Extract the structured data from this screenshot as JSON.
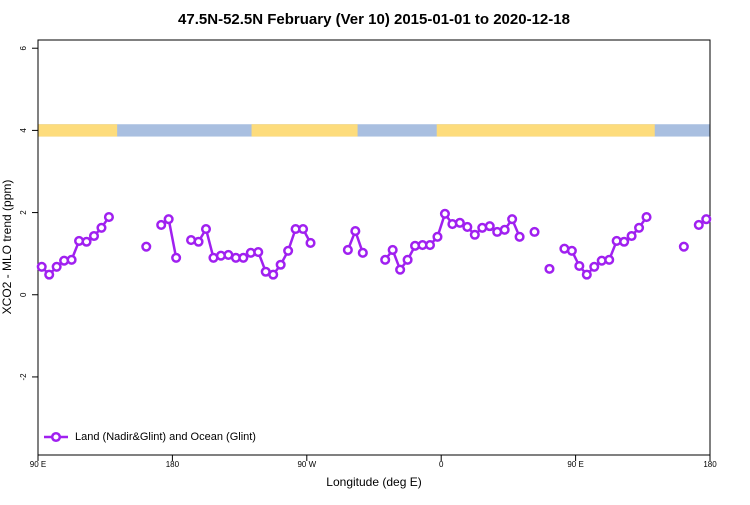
{
  "chart_data": {
    "type": "line",
    "title": "47.5N-52.5N February (Ver 10)   2015-01-01 to 2020-12-18",
    "xlabel": "Longitude (deg E)",
    "ylabel": "XCO2 - MLO trend (ppm)",
    "xlim": [
      90,
      540
    ],
    "ylim": [
      -3.9,
      6.2
    ],
    "xticks": [
      {
        "value": 90,
        "label": "90 E"
      },
      180,
      {
        "value": 270,
        "label": "90 W"
      },
      {
        "value": 360,
        "label": "0"
      },
      {
        "value": 450,
        "label": "90 E"
      },
      {
        "value": 540,
        "label": "180"
      }
    ],
    "yticks": [
      -2,
      0,
      2,
      4,
      6
    ],
    "legend": "lower left",
    "surface_band": {
      "ylim": [
        3.85,
        4.15
      ],
      "ocean_color": "#a9bfe0",
      "land_color": "#fddc7c",
      "land": [
        [
          90,
          143
        ],
        [
          233,
          304
        ],
        [
          357,
          503
        ]
      ]
    },
    "x": [
      92.5,
      97.5,
      102.5,
      107.5,
      112.5,
      117.5,
      122.5,
      127.5,
      132.5,
      137.5,
      142.5,
      147.5,
      152.5,
      157.5,
      162.5,
      167.5,
      172.5,
      177.5,
      182.5,
      187.5,
      192.5,
      197.5,
      202.5,
      207.5,
      212.5,
      217.5,
      222.5,
      227.5,
      232.5,
      237.5,
      242.5,
      247.5,
      252.5,
      257.5,
      262.5,
      267.5,
      272.5,
      277.5,
      282.5,
      287.5,
      292.5,
      297.5,
      302.5,
      307.5,
      312.5,
      317.5,
      322.5,
      327.5,
      332.5,
      337.5,
      342.5,
      347.5,
      352.5,
      357.5,
      362.5,
      367.5,
      372.5,
      377.5,
      382.5,
      387.5,
      392.5,
      397.5,
      402.5,
      407.5,
      412.5,
      417.5,
      422.5,
      427.5,
      432.5,
      437.5,
      442.5,
      447.5,
      452.5,
      457.5,
      462.5,
      467.5,
      472.5,
      477.5,
      482.5,
      487.5,
      492.5,
      497.5,
      502.5,
      507.5,
      512.5,
      517.5,
      522.5,
      527.5,
      532.5,
      537.5
    ],
    "series": [
      {
        "name": "Land (Nadir&Glint) and Ocean (Glint)",
        "color": "#a020f0",
        "values": [
          0.68,
          0.49,
          0.68,
          0.83,
          0.85,
          1.31,
          1.29,
          1.43,
          1.63,
          1.89,
          null,
          null,
          null,
          null,
          1.17,
          null,
          1.7,
          1.84,
          0.9,
          null,
          1.33,
          1.29,
          1.6,
          0.9,
          0.95,
          0.97,
          0.9,
          0.9,
          1.02,
          1.04,
          0.56,
          0.49,
          0.73,
          1.07,
          1.6,
          1.6,
          1.26,
          null,
          null,
          null,
          null,
          1.09,
          1.55,
          1.02,
          null,
          null,
          0.85,
          1.09,
          0.61,
          0.85,
          1.19,
          1.21,
          1.21,
          1.41,
          1.97,
          1.72,
          1.75,
          1.65,
          1.46,
          1.63,
          1.67,
          1.53,
          1.58,
          1.84,
          1.41,
          null,
          1.53,
          null,
          0.63,
          null,
          1.12,
          1.07,
          0.7,
          0.49,
          0.68,
          0.83,
          0.85,
          1.31,
          1.29,
          1.43,
          1.63,
          1.89,
          null,
          null,
          null,
          null,
          1.17,
          null,
          1.7,
          1.84
        ]
      }
    ]
  }
}
